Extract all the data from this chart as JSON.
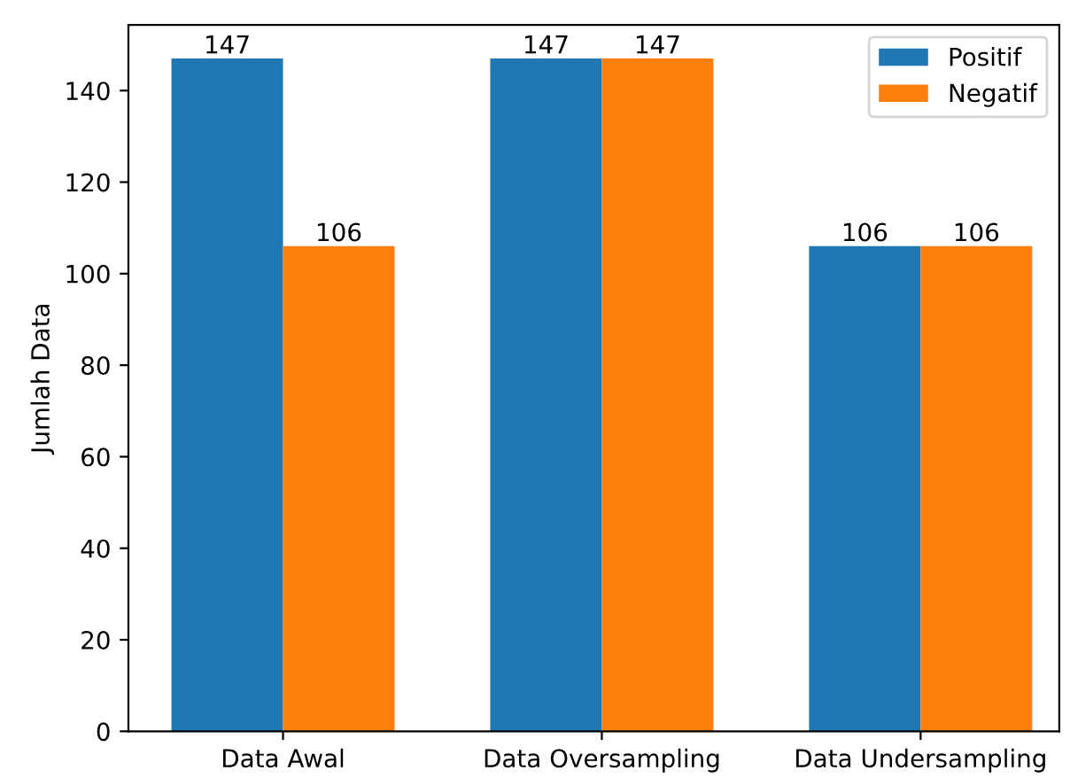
{
  "chart_data": {
    "type": "bar",
    "ylabel": "Jumlah Data",
    "categories": [
      "Data Awal",
      "Data Oversampling",
      "Data Undersampling"
    ],
    "series": [
      {
        "name": "Positif",
        "color": "#1f77b4",
        "values": [
          147,
          147,
          106
        ]
      },
      {
        "name": "Negatif",
        "color": "#ff7f0e",
        "values": [
          106,
          147,
          106
        ]
      }
    ],
    "ylim": [
      0,
      154.35
    ],
    "yticks": [
      0,
      20,
      40,
      60,
      80,
      100,
      120,
      140
    ],
    "data_labels": true,
    "legend": "top right",
    "grid": false
  }
}
